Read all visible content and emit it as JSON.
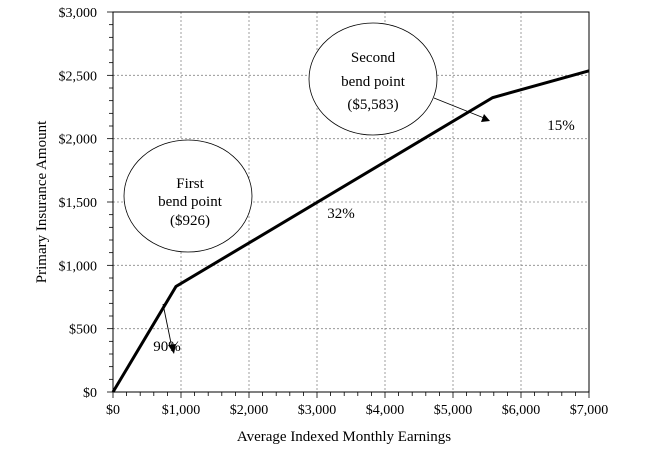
{
  "chart_data": {
    "type": "line",
    "title": "",
    "xlabel": "Average Indexed Monthly Earnings",
    "ylabel": "Primary Insurance Amount",
    "xlim": [
      0,
      7000
    ],
    "ylim": [
      0,
      3000
    ],
    "grid": true,
    "x_ticks": [
      0,
      1000,
      2000,
      3000,
      4000,
      5000,
      6000,
      7000
    ],
    "x_tick_labels": [
      "$0",
      "$1,000",
      "$2,000",
      "$3,000",
      "$4,000",
      "$5,000",
      "$6,000",
      "$7,000"
    ],
    "y_ticks": [
      0,
      500,
      1000,
      1500,
      2000,
      2500,
      3000
    ],
    "y_tick_labels": [
      "$0",
      "$500",
      "$1,000",
      "$1,500",
      "$2,000",
      "$2,500",
      "$3,000"
    ],
    "series": [
      {
        "x": [
          0,
          926,
          5583,
          7000
        ],
        "y": [
          0,
          833,
          2324,
          2536
        ],
        "color": "#000000"
      }
    ],
    "annotations": {
      "first_bend": {
        "lines": [
          "First",
          "bend point",
          "($926)"
        ],
        "x": 926,
        "y": 833
      },
      "second_bend": {
        "lines": [
          "Second",
          "bend point",
          "($5,583)"
        ],
        "x": 5583,
        "y": 2324
      },
      "rates": [
        {
          "text": "90%",
          "x": 1200,
          "y": 350
        },
        {
          "text": "32%",
          "x": 3550,
          "y": 1400
        },
        {
          "text": "15%",
          "x": 6500,
          "y": 2350
        }
      ]
    }
  }
}
